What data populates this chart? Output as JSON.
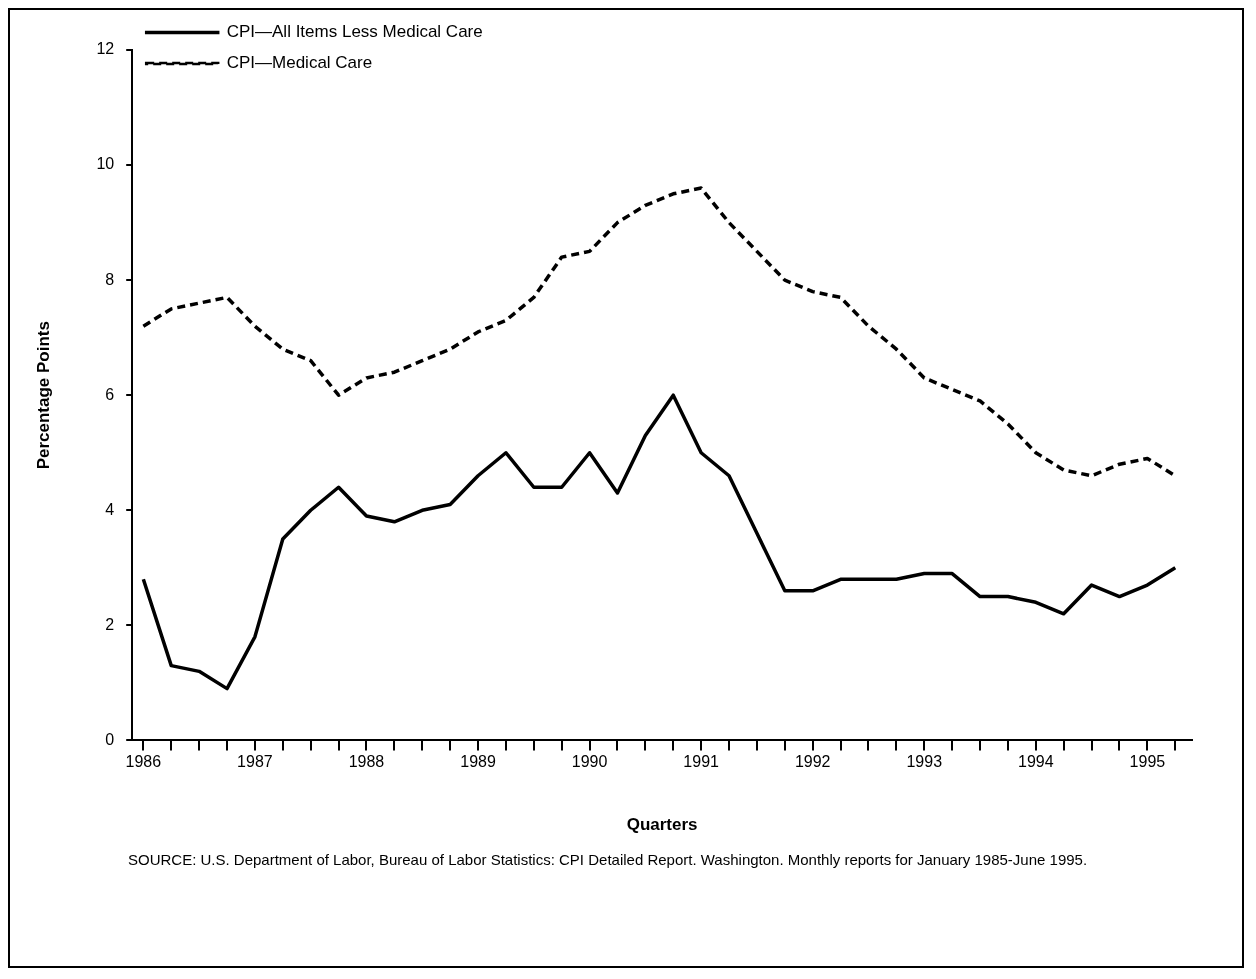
{
  "chart_data": {
    "type": "line",
    "xlabel": "Quarters",
    "ylabel": "Percentage Points",
    "x": [
      1986,
      1986.25,
      1986.5,
      1986.75,
      1987,
      1987.25,
      1987.5,
      1987.75,
      1988,
      1988.25,
      1988.5,
      1988.75,
      1989,
      1989.25,
      1989.5,
      1989.75,
      1990,
      1990.25,
      1990.5,
      1990.75,
      1991,
      1991.25,
      1991.5,
      1991.75,
      1992,
      1992.25,
      1992.5,
      1992.75,
      1993,
      1993.25,
      1993.5,
      1993.75,
      1994,
      1994.25,
      1994.5,
      1994.75,
      1995,
      1995.25
    ],
    "series": [
      {
        "name": "CPI—All Items Less Medical Care",
        "color": "#000000",
        "line_style": "solid",
        "values": [
          2.8,
          1.3,
          1.2,
          0.9,
          1.8,
          3.5,
          4.0,
          4.4,
          3.9,
          3.8,
          4.0,
          4.1,
          4.6,
          5.0,
          4.4,
          4.4,
          5.0,
          4.3,
          5.3,
          6.0,
          5.0,
          4.6,
          3.6,
          2.6,
          2.6,
          2.8,
          2.8,
          2.8,
          2.9,
          2.9,
          2.5,
          2.5,
          2.4,
          2.2,
          2.7,
          2.5,
          2.7,
          3.0
        ]
      },
      {
        "name": "CPI—Medical Care",
        "color": "#000000",
        "line_style": "dashed",
        "values": [
          7.2,
          7.5,
          7.6,
          7.7,
          7.2,
          6.8,
          6.6,
          6.0,
          6.3,
          6.4,
          6.6,
          6.8,
          7.1,
          7.3,
          7.7,
          8.4,
          8.5,
          9.0,
          9.3,
          9.5,
          9.6,
          9.0,
          8.5,
          8.0,
          7.8,
          7.7,
          7.2,
          6.8,
          6.3,
          6.1,
          5.9,
          5.5,
          5.0,
          4.7,
          4.6,
          4.8,
          4.9,
          4.6
        ]
      }
    ],
    "xlim": [
      1985.9,
      1995.4
    ],
    "xticks": [
      1986,
      {
        "value": 1986.25,
        "label": null
      },
      {
        "value": 1986.5,
        "label": null
      },
      {
        "value": 1986.75,
        "label": null
      },
      1987,
      {
        "value": 1987.25,
        "label": null
      },
      {
        "value": 1987.5,
        "label": null
      },
      {
        "value": 1987.75,
        "label": null
      },
      1988,
      {
        "value": 1988.25,
        "label": null
      },
      {
        "value": 1988.5,
        "label": null
      },
      {
        "value": 1988.75,
        "label": null
      },
      1989,
      {
        "value": 1989.25,
        "label": null
      },
      {
        "value": 1989.5,
        "label": null
      },
      {
        "value": 1989.75,
        "label": null
      },
      1990,
      {
        "value": 1990.25,
        "label": null
      },
      {
        "value": 1990.5,
        "label": null
      },
      {
        "value": 1990.75,
        "label": null
      },
      1991,
      {
        "value": 1991.25,
        "label": null
      },
      {
        "value": 1991.5,
        "label": null
      },
      {
        "value": 1991.75,
        "label": null
      },
      1992,
      {
        "value": 1992.25,
        "label": null
      },
      {
        "value": 1992.5,
        "label": null
      },
      {
        "value": 1992.75,
        "label": null
      },
      1993,
      {
        "value": 1993.25,
        "label": null
      },
      {
        "value": 1993.5,
        "label": null
      },
      {
        "value": 1993.75,
        "label": null
      },
      1994,
      {
        "value": 1994.25,
        "label": null
      },
      {
        "value": 1994.5,
        "label": null
      },
      {
        "value": 1994.75,
        "label": null
      },
      1995,
      {
        "value": 1995.25,
        "label": null
      }
    ],
    "ylim": [
      0,
      12
    ],
    "yticks": [
      0,
      2,
      4,
      6,
      8,
      10,
      12
    ],
    "grid": false,
    "legend": "top left",
    "marker": "none",
    "annotations": [
      "SOURCE: U.S. Department of Labor, Bureau of Labor Statistics: CPI Detailed Report. Washington. Monthly reports for January 1985-June 1995."
    ]
  }
}
